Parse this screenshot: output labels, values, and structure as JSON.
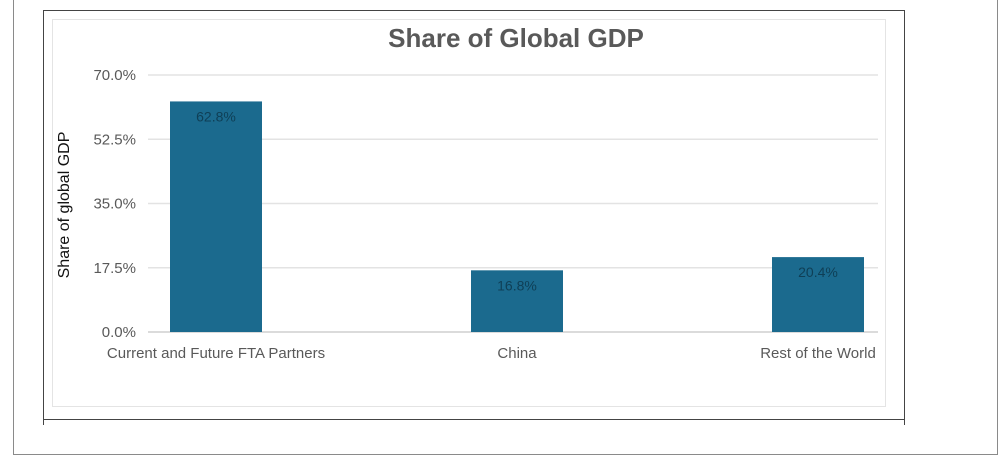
{
  "chart_data": {
    "type": "bar",
    "title": "Share of Global GDP",
    "xlabel": "",
    "ylabel": "Share of global GDP",
    "categories": [
      "Current and Future FTA Partners",
      "China",
      "Rest of the World"
    ],
    "values": [
      62.8,
      16.8,
      20.4
    ],
    "data_labels": [
      "62.8%",
      "16.8%",
      "20.4%"
    ],
    "ylim": [
      0,
      70
    ],
    "yticks": [
      0,
      17.5,
      35,
      52.5,
      70
    ],
    "ytick_labels": [
      "0.0%",
      "17.5%",
      "35.0%",
      "52.5%",
      "70.0%"
    ],
    "bar_color": "#1b6a8e",
    "grid": true,
    "legend": "none"
  }
}
